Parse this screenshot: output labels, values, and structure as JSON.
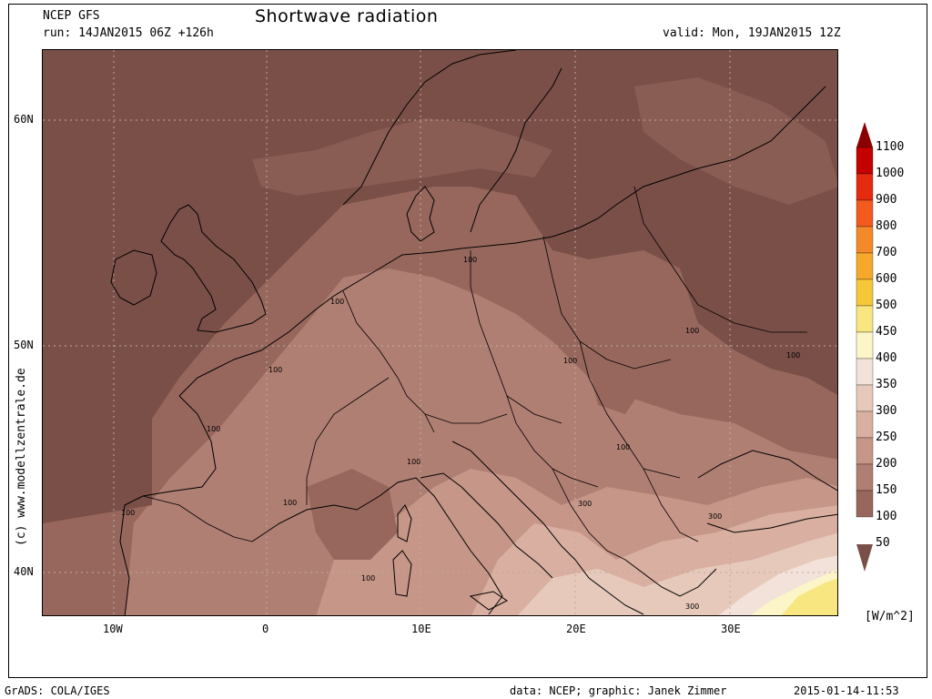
{
  "header": {
    "model": "NCEP GFS",
    "run": "run: 14JAN2015 06Z +126h",
    "title": "Shortwave radiation",
    "valid": "valid: Mon, 19JAN2015 12Z"
  },
  "axes": {
    "lat_labels": [
      "60N",
      "50N",
      "40N"
    ],
    "lon_labels": [
      "10W",
      "0",
      "10E",
      "20E",
      "30E"
    ]
  },
  "credit": "(c) www.modellzentrale.de",
  "legend": {
    "levels": [
      "1100",
      "1000",
      "900",
      "800",
      "700",
      "600",
      "500",
      "450",
      "400",
      "350",
      "300",
      "250",
      "200",
      "150",
      "100",
      "50"
    ],
    "colors": [
      "#8b0000",
      "#c40000",
      "#e52a10",
      "#f25a1e",
      "#f4892a",
      "#f6a82a",
      "#f7c73a",
      "#f8e680",
      "#fbf5c8",
      "#f3e2d9",
      "#e6c9bb",
      "#d8afa0",
      "#c69688",
      "#b07f73",
      "#97675d",
      "#7a4f47"
    ],
    "unit": "[W/m^2]"
  },
  "contour_labels": [
    "100",
    "100",
    "100",
    "100",
    "100",
    "100",
    "100",
    "100",
    "100",
    "100",
    "100",
    "100",
    "300",
    "300",
    "300"
  ],
  "footer": {
    "left": "GrADS: COLA/IGES",
    "middle": "data: NCEP; graphic: Janek Zimmer",
    "right": "2015-01-14-11:53"
  }
}
